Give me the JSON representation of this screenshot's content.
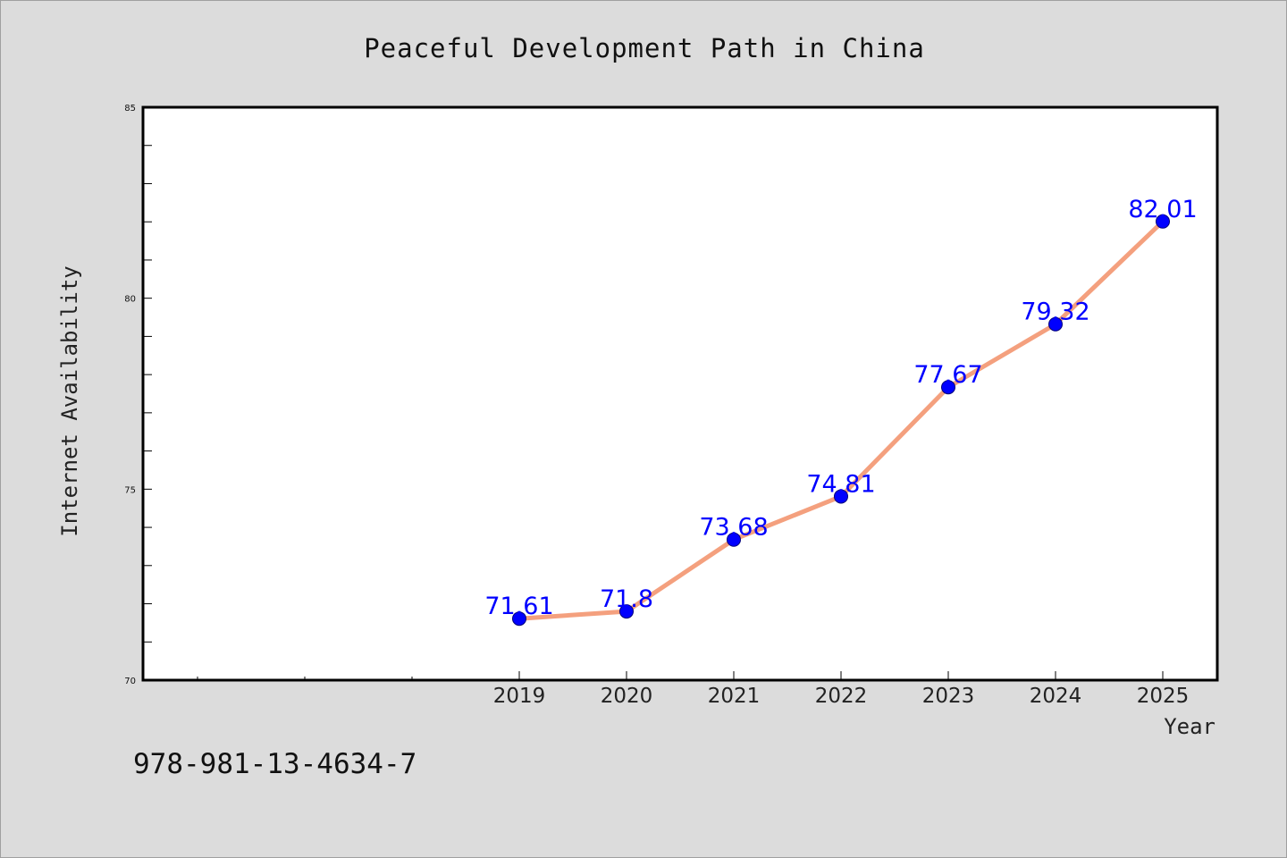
{
  "chart_data": {
    "type": "line",
    "title": "Peaceful Development Path in China",
    "xlabel": "Year",
    "ylabel": "Internet Availability",
    "categories": [
      "2019",
      "2020",
      "2021",
      "2022",
      "2023",
      "2024",
      "2025"
    ],
    "series": [
      {
        "values": [
          71.61,
          71.8,
          73.68,
          74.81,
          77.67,
          79.32,
          82.01
        ],
        "data_labels": [
          "71.61",
          "71.8",
          "73.68",
          "74.81",
          "77.67",
          "79.32",
          "82.01"
        ]
      }
    ],
    "ylim": [
      70,
      85
    ],
    "y_ticks": [
      "70",
      "75",
      "80",
      "85"
    ],
    "grid": false,
    "legend": "none",
    "colors": {
      "line": "#f4a07e",
      "marker": "#0000ff",
      "data_label": "#0000ff",
      "background": "#dcdcdc",
      "plot_background": "#ffffff"
    }
  },
  "footer": {
    "isbn": "978-981-13-4634-7"
  }
}
